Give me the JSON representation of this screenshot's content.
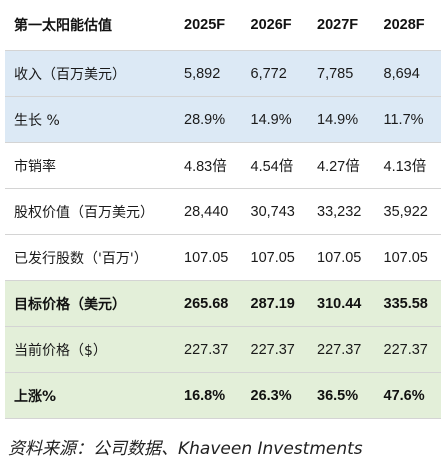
{
  "table": {
    "header": [
      "第一太阳能估值",
      "2025F",
      "2026F",
      "2027F",
      "2028F"
    ],
    "rows": [
      {
        "label": "收入（百万美元）",
        "values": [
          "5,892",
          "6,772",
          "7,785",
          "8,694"
        ]
      },
      {
        "label": "生长 %",
        "values": [
          "28.9%",
          "14.9%",
          "14.9%",
          "11.7%"
        ]
      },
      {
        "label": "市销率",
        "values": [
          "4.83倍",
          "4.54倍",
          "4.27倍",
          "4.13倍"
        ]
      },
      {
        "label": "股权价值（百万美元）",
        "values": [
          "28,440",
          "30,743",
          "33,232",
          "35,922"
        ]
      },
      {
        "label": "已发行股数（'百万'）",
        "values": [
          "107.05",
          "107.05",
          "107.05",
          "107.05"
        ]
      },
      {
        "label": "目标价格（美元）",
        "values": [
          "265.68",
          "287.19",
          "310.44",
          "335.58"
        ]
      },
      {
        "label": "当前价格（$）",
        "values": [
          "227.37",
          "227.37",
          "227.37",
          "227.37"
        ]
      },
      {
        "label": "上涨%",
        "values": [
          "16.8%",
          "26.3%",
          "36.5%",
          "47.6%"
        ]
      }
    ]
  },
  "source": "资料来源：公司数据、Khaveen Investments",
  "colors": {
    "highlight_blue": "#dce9f5",
    "highlight_green": "#e3efd9",
    "row_border": "#d4d4d4"
  }
}
